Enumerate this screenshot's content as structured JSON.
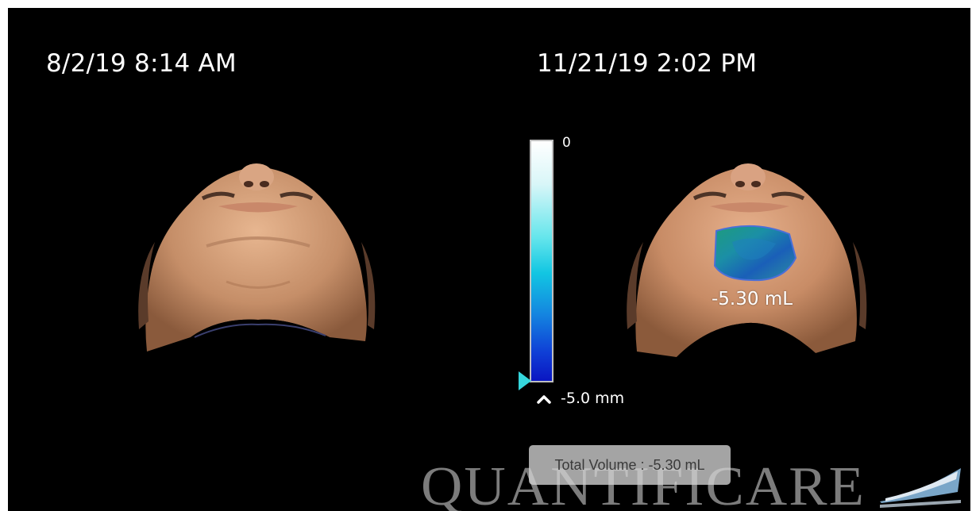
{
  "comparison": {
    "before": {
      "date_label": "8/2/19 8:14 AM"
    },
    "after": {
      "date_label": "11/21/19 2:02 PM"
    }
  },
  "color_scale": {
    "max_label": "0",
    "min_label": "-5.0 mm",
    "gradient_top_color": "#ffffff",
    "gradient_bottom_color": "#0a16c2",
    "handle_color": "#35d6dc"
  },
  "region": {
    "volume_label": "-5.30 mL"
  },
  "total_volume": {
    "text": "Total Volume : -5.30 mL"
  },
  "branding": {
    "logo_text": "QUANTIFICARE"
  },
  "colors": {
    "background": "#000000",
    "text": "#ffffff",
    "overlay_box": "#d2d2d2"
  }
}
